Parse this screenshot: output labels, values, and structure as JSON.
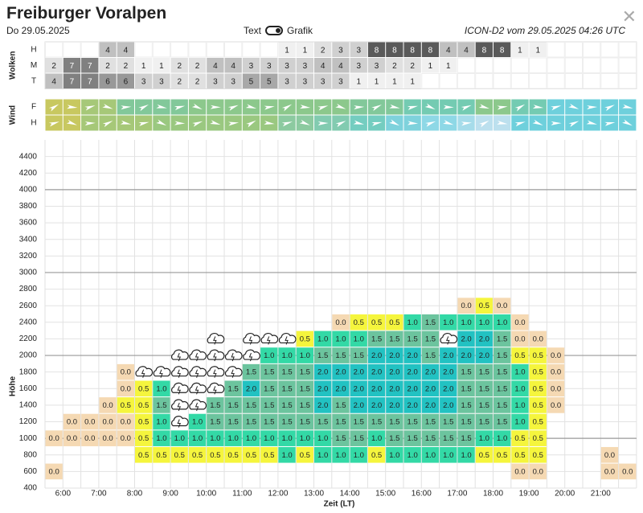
{
  "header": {
    "title": "Freiburger Voralpen",
    "date": "Do 29.05.2025",
    "toggle_text": "Text",
    "toggle_graphic": "Grafik",
    "model_info": "ICON-D2 vom 29.05.2025 04:26 UTC",
    "close_icon": "close-icon"
  },
  "cloud_section": {
    "label": "Wolken",
    "rows": [
      {
        "label": "H",
        "values": [
          null,
          null,
          null,
          4,
          4,
          null,
          null,
          null,
          null,
          null,
          null,
          null,
          null,
          1,
          1,
          2,
          3,
          3,
          8,
          8,
          8,
          8,
          4,
          4,
          8,
          8,
          1,
          1,
          null,
          null,
          null,
          null,
          null
        ]
      },
      {
        "label": "M",
        "values": [
          2,
          7,
          7,
          2,
          2,
          1,
          1,
          2,
          2,
          4,
          4,
          3,
          3,
          3,
          3,
          4,
          4,
          3,
          3,
          2,
          2,
          1,
          1,
          null,
          null,
          null,
          null,
          null,
          null,
          null,
          null,
          null,
          null
        ]
      },
      {
        "label": "T",
        "values": [
          4,
          7,
          7,
          6,
          6,
          3,
          3,
          2,
          2,
          3,
          3,
          5,
          5,
          3,
          3,
          3,
          3,
          1,
          1,
          1,
          1,
          null,
          null,
          null,
          null,
          null,
          null,
          null,
          null,
          null,
          null,
          null,
          null
        ]
      }
    ]
  },
  "wind_section": {
    "label": "Wind",
    "rows": [
      {
        "label": "F",
        "colors": [
          "#c8c860",
          "#c8c860",
          "#a6c878",
          "#a6c878",
          "#82c89a",
          "#82c89a",
          "#82c89a",
          "#82c89a",
          "#8cc88c",
          "#8cc88c",
          "#8cc88c",
          "#8cc88c",
          "#8cc88c",
          "#8cc88c",
          "#8cc88c",
          "#8cc88c",
          "#8cc88c",
          "#82c89a",
          "#82c89a",
          "#82c89a",
          "#74cbb2",
          "#74cbb2",
          "#74cbb2",
          "#74cbb2",
          "#8cc88c",
          "#8cc88c",
          "#74cbb2",
          "#74cbb2",
          "#6ed0dc",
          "#6ed0dc",
          "#6ed0dc",
          "#6ed0dc",
          "#6ed0dc"
        ]
      },
      {
        "label": "H",
        "colors": [
          "#c8c860",
          "#c8c860",
          "#a6c878",
          "#a6c878",
          "#a6c878",
          "#a6c878",
          "#9ac880",
          "#9ac880",
          "#9ac880",
          "#9ac880",
          "#9ac880",
          "#9ac880",
          "#9ac880",
          "#8ccaa0",
          "#8ccaa0",
          "#82cbb0",
          "#82cbb0",
          "#74cdc0",
          "#74cdc0",
          "#7ed2dc",
          "#7ed2dc",
          "#8ed8e6",
          "#8ed8e6",
          "#a6dcea",
          "#bce0ee",
          "#bce0ee",
          "#6ed0dc",
          "#6ed0dc",
          "#6ed0dc",
          "#6ed0dc",
          "#6ed0dc",
          "#6ed0dc",
          "#6ed0dc"
        ]
      }
    ]
  },
  "chart_data": {
    "type": "heatmap",
    "title": "",
    "xlabel": "Zeit (LT)",
    "ylabel": "Höhe",
    "x_ticks": [
      "6:00",
      "7:00",
      "8:00",
      "9:00",
      "10:00",
      "11:00",
      "12:00",
      "13:00",
      "14:00",
      "15:00",
      "16:00",
      "17:00",
      "18:00",
      "19:00",
      "20:00",
      "21:00"
    ],
    "x_start_hour": 5.5,
    "x_step_hours": 0.5,
    "y_ticks": [
      400,
      600,
      800,
      1000,
      1200,
      1400,
      1600,
      1800,
      2000,
      2200,
      2400,
      2600,
      2800,
      3000,
      3200,
      3400,
      3600,
      3800,
      4000,
      4200,
      4400
    ],
    "ylim": [
      400,
      4600
    ],
    "y_row_step": 200,
    "legend_colors": {
      "0.0": "#f5d9b3",
      "0.5": "#f5f53d",
      "1.0": "#33d9a6",
      "1.5": "#6cc49e",
      "2.0": "#22c2c2"
    },
    "cloud_icon": "cloud-lightning-icon",
    "columns": [
      {
        "600": "0.0",
        "800": "",
        "1000": "0.0"
      },
      {
        "1000": "0.0",
        "1200": "0.0"
      },
      {
        "1000": "0.0",
        "1200": "0.0"
      },
      {
        "1000": "0.0",
        "1200": "0.0",
        "1400": "0.0"
      },
      {
        "1000": "0.0",
        "1200": "0.0",
        "1400": "0.5",
        "1600": "0.0",
        "1800": "0.0"
      },
      {
        "800": "0.5",
        "1000": "0.5",
        "1200": "0.5",
        "1400": "0.5",
        "1600": "0.5",
        "1800": "cloud"
      },
      {
        "800": "0.5",
        "1000": "1.0",
        "1200": "1.0",
        "1400": "1.5",
        "1600": "1.0",
        "1800": "cloud"
      },
      {
        "800": "0.5",
        "1000": "1.0",
        "1200": "cloud",
        "1400": "cloud",
        "1600": "cloud",
        "1800": "cloud",
        "2000": "cloud"
      },
      {
        "800": "0.5",
        "1000": "1.0",
        "1200": "1.0",
        "1400": "cloud",
        "1600": "cloud",
        "1800": "cloud",
        "2000": "cloud"
      },
      {
        "800": "0.5",
        "1000": "1.0",
        "1200": "1.5",
        "1400": "1.5",
        "1600": "cloud",
        "1800": "cloud",
        "2000": "cloud",
        "2200": "cloud"
      },
      {
        "800": "0.5",
        "1000": "1.0",
        "1200": "1.5",
        "1400": "1.5",
        "1600": "1.5",
        "1800": "cloud",
        "2000": "cloud"
      },
      {
        "800": "0.5",
        "1000": "1.0",
        "1200": "1.5",
        "1400": "1.5",
        "1600": "2.0",
        "1800": "1.5",
        "2000": "cloud",
        "2200": "cloud"
      },
      {
        "800": "0.5",
        "1000": "1.0",
        "1200": "1.5",
        "1400": "1.5",
        "1600": "1.5",
        "1800": "1.5",
        "2000": "1.0",
        "2200": "cloud"
      },
      {
        "800": "1.0",
        "1000": "1.0",
        "1200": "1.5",
        "1400": "1.5",
        "1600": "1.5",
        "1800": "1.5",
        "2000": "1.0",
        "2200": "cloud"
      },
      {
        "800": "0.5",
        "1000": "1.0",
        "1200": "1.5",
        "1400": "1.5",
        "1600": "1.5",
        "1800": "1.5",
        "2000": "1.0",
        "2200": "0.5"
      },
      {
        "800": "1.0",
        "1000": "1.0",
        "1200": "1.5",
        "1400": "2.0",
        "1600": "2.0",
        "1800": "2.0",
        "2000": "1.5",
        "2200": "1.0"
      },
      {
        "800": "1.0",
        "1000": "1.5",
        "1200": "1.5",
        "1400": "1.5",
        "1600": "2.0",
        "1800": "2.0",
        "2000": "1.5",
        "2200": "1.0",
        "2400": "0.0"
      },
      {
        "800": "1.0",
        "1000": "1.5",
        "1200": "1.5",
        "1400": "2.0",
        "1600": "2.0",
        "1800": "2.0",
        "2000": "1.5",
        "2200": "1.0",
        "2400": "0.5"
      },
      {
        "800": "0.5",
        "1000": "1.0",
        "1200": "1.5",
        "1400": "2.0",
        "1600": "2.0",
        "1800": "2.0",
        "2000": "2.0",
        "2200": "1.5",
        "2400": "0.5"
      },
      {
        "800": "1.0",
        "1000": "1.5",
        "1200": "1.5",
        "1400": "2.0",
        "1600": "2.0",
        "1800": "2.0",
        "2000": "2.0",
        "2200": "1.5",
        "2400": "0.5"
      },
      {
        "800": "1.0",
        "1000": "1.5",
        "1200": "1.5",
        "1400": "2.0",
        "1600": "2.0",
        "1800": "2.0",
        "2000": "2.0",
        "2200": "1.5",
        "2400": "1.0"
      },
      {
        "800": "1.0",
        "1000": "1.5",
        "1200": "1.5",
        "1400": "2.0",
        "1600": "2.0",
        "1800": "2.0",
        "2000": "1.5",
        "2200": "1.5",
        "2400": "1.5"
      },
      {
        "800": "1.0",
        "1000": "1.5",
        "1200": "1.5",
        "1400": "2.0",
        "1600": "2.0",
        "1800": "2.0",
        "2000": "2.0",
        "2200": "cloud",
        "2400": "1.0"
      },
      {
        "800": "1.0",
        "1000": "1.5",
        "1200": "1.5",
        "1400": "1.5",
        "1600": "1.5",
        "1800": "1.5",
        "2000": "2.0",
        "2200": "2.0",
        "2400": "1.0",
        "2600": "0.0"
      },
      {
        "800": "0.5",
        "1000": "1.0",
        "1200": "1.5",
        "1400": "1.5",
        "1600": "1.5",
        "1800": "1.5",
        "2000": "2.0",
        "2200": "2.0",
        "2400": "1.0",
        "2600": "0.5"
      },
      {
        "800": "0.5",
        "1000": "1.0",
        "1200": "1.5",
        "1400": "1.5",
        "1600": "1.5",
        "1800": "1.5",
        "2000": "1.5",
        "2200": "1.5",
        "2400": "1.0",
        "2600": "0.0"
      },
      {
        "600": "0.0",
        "800": "0.5",
        "1000": "0.5",
        "1200": "1.0",
        "1400": "1.0",
        "1600": "1.0",
        "1800": "1.0",
        "2000": "0.5",
        "2200": "0.0",
        "2400": "0.0"
      },
      {
        "600": "0.0",
        "800": "0.5",
        "1000": "0.5",
        "1200": "0.5",
        "1400": "0.5",
        "1600": "0.5",
        "1800": "0.5",
        "2000": "0.5",
        "2200": "0.0"
      },
      {
        "1400": "0.0",
        "1600": "0.0",
        "1800": "0.0",
        "2000": "0.0"
      },
      {},
      {},
      {
        "600": "0.0",
        "800": "0.0"
      },
      {
        "600": "0.0"
      }
    ]
  }
}
